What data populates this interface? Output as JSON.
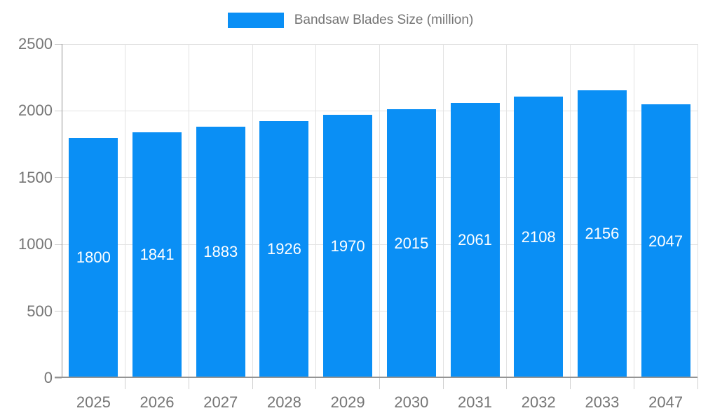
{
  "chart_data": {
    "type": "bar",
    "title": "Bandsaw Blades Size (million)",
    "categories": [
      "2025",
      "2026",
      "2027",
      "2028",
      "2029",
      "2030",
      "2031",
      "2032",
      "2033",
      "2047"
    ],
    "values": [
      1800,
      1841,
      1883,
      1926,
      1970,
      2015,
      2061,
      2108,
      2156,
      2047
    ],
    "xlabel": "",
    "ylabel": "",
    "ylim": [
      0,
      2500
    ],
    "yticks": [
      0,
      500,
      1000,
      1500,
      2000,
      2500
    ],
    "grid": true,
    "legend_position": "top",
    "value_labels": "inside-middle",
    "colors": {
      "bar": "#0a8ff5",
      "value_label": "#ffffff",
      "axis_text": "#757575",
      "axis_line": "#949494",
      "gridline": "#e2e2e2",
      "tick": "#cfcfcf",
      "background": "#ffffff"
    }
  }
}
